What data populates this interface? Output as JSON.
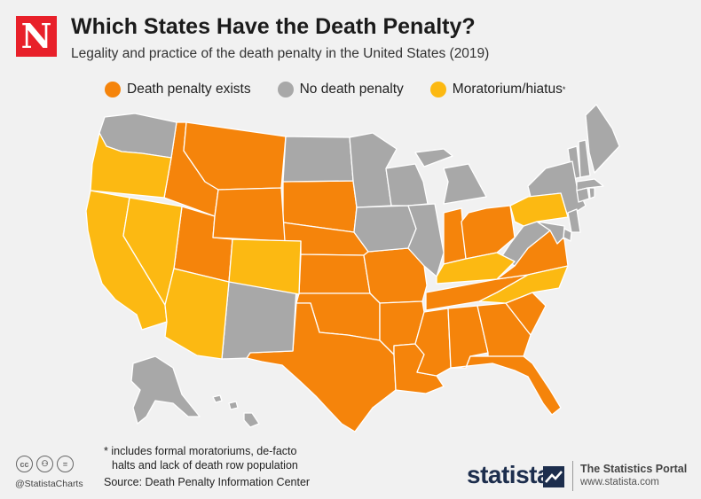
{
  "header": {
    "logo_letter": "N",
    "title": "Which States Have the Death Penalty?",
    "subtitle": "Legality and practice of the death penalty in the United States (2019)"
  },
  "legend": [
    {
      "label": "Death penalty exists",
      "color": "#f5840b"
    },
    {
      "label": "No death penalty",
      "color": "#a8a8a8"
    },
    {
      "label": "Moratorium/hiatus",
      "color": "#fcb912",
      "marker": "*"
    }
  ],
  "map": {
    "region": "United States",
    "border_color": "#ffffff",
    "states": {
      "death_penalty_exists": [
        "Idaho",
        "Utah",
        "South Dakota",
        "Nebraska",
        "Kansas",
        "Missouri",
        "Oklahoma",
        "Texas",
        "Arkansas",
        "Louisiana",
        "Mississippi",
        "Alabama",
        "Georgia",
        "Florida",
        "South Carolina",
        "Tennessee",
        "Indiana",
        "Ohio",
        "Virginia",
        "Montana",
        "Wyoming"
      ],
      "no_death_penalty": [
        "Washington",
        "New Mexico",
        "North Dakota",
        "Minnesota",
        "Iowa",
        "Wisconsin",
        "Illinois",
        "Michigan",
        "West Virginia",
        "Maine",
        "Vermont",
        "New Hampshire",
        "New York",
        "Massachusetts",
        "Rhode Island",
        "Connecticut",
        "New Jersey",
        "Delaware",
        "Maryland",
        "Alaska",
        "Hawaii"
      ],
      "moratorium_hiatus": [
        "Oregon",
        "California",
        "Nevada",
        "Arizona",
        "Colorado",
        "Kentucky",
        "North Carolina",
        "Pennsylvania"
      ]
    }
  },
  "footer": {
    "note_line1": "* includes formal moratoriums, de-facto",
    "note_line2": "halts and lack of death row population",
    "source": "Source: Death Penalty Information Center",
    "handle": "@StatistaCharts",
    "cc_icons": [
      "cc-icon",
      "by-icon",
      "nd-icon"
    ],
    "cc_glyphs": [
      "cc",
      "⚇",
      "="
    ],
    "brand": "statista",
    "portal_title": "The Statistics Portal",
    "portal_url": "www.statista.com"
  }
}
